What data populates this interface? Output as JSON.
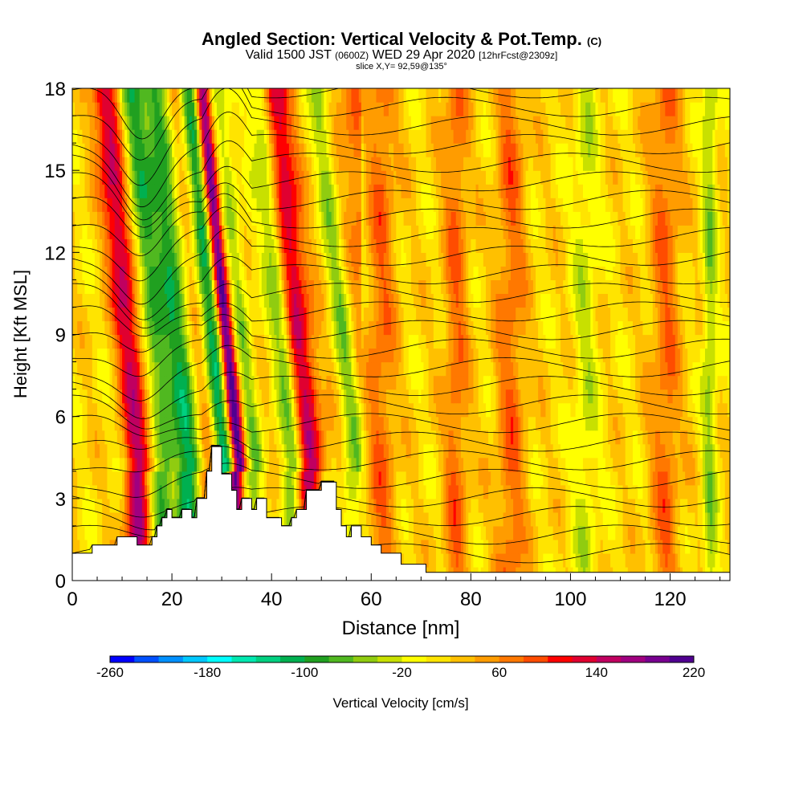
{
  "header": {
    "title": "Angled Section: Vertical Velocity & Pot.Temp.",
    "title_suffix": "(C)",
    "valid_prefix": "Valid 1500 JST",
    "valid_utc": "(0600Z)",
    "valid_date": "WED 29 Apr 2020",
    "forecast": "[12hrFcst@2309z]",
    "slice": "slice X,Y= 92,59@135°"
  },
  "chart_data": {
    "type": "heatmap",
    "xlabel": "Distance [nm]",
    "ylabel": "Height [Kft MSL]",
    "xlim": [
      0,
      132
    ],
    "ylim": [
      0,
      18
    ],
    "x_ticks": [
      0,
      20,
      40,
      60,
      80,
      100,
      120
    ],
    "y_ticks": [
      0,
      3,
      6,
      9,
      12,
      15,
      18
    ],
    "colorbar": {
      "label": "Vertical Velocity [cm/s]",
      "min": -260,
      "max": 220,
      "step": 20,
      "tick_labels": [
        "-260",
        "-180",
        "-100",
        "-20",
        "60",
        "140",
        "220"
      ],
      "colors": [
        "#0000ff",
        "#0050ff",
        "#0090ff",
        "#00c8ff",
        "#00ffff",
        "#00e8b0",
        "#00d080",
        "#00b050",
        "#20a020",
        "#50b820",
        "#90cc10",
        "#c8e000",
        "#ffff00",
        "#ffe400",
        "#ffc000",
        "#ff9c00",
        "#ff7800",
        "#ff4c00",
        "#ff0000",
        "#e00030",
        "#c00060",
        "#a00080",
        "#780090",
        "#500090"
      ]
    },
    "velocity_features": [
      {
        "x": 13,
        "w": 2.6,
        "value": 140
      },
      {
        "x": 18,
        "w": 2.5,
        "value": -100
      },
      {
        "x": 23,
        "w": 2.5,
        "value": -120
      },
      {
        "x": 27,
        "w": 1.8,
        "value": 60
      },
      {
        "x": 30,
        "w": 2.2,
        "value": -140
      },
      {
        "x": 32.5,
        "w": 1.5,
        "value": 220
      },
      {
        "x": 36,
        "w": 1.8,
        "value": -60
      },
      {
        "x": 44,
        "w": 2.2,
        "value": -100
      },
      {
        "x": 47,
        "w": 3,
        "value": 140
      },
      {
        "x": 56,
        "w": 1.8,
        "value": -60
      },
      {
        "x": 62,
        "w": 3,
        "value": 60
      },
      {
        "x": 77,
        "w": 2.5,
        "value": 60
      },
      {
        "x": 88,
        "w": 3,
        "value": 60
      },
      {
        "x": 103,
        "w": 2.5,
        "value": -40
      },
      {
        "x": 119,
        "w": 3,
        "value": 60
      },
      {
        "x": 128,
        "w": 1.5,
        "value": -60
      }
    ],
    "terrain": {
      "x": [
        0,
        4,
        4,
        9,
        9,
        13,
        13,
        16,
        16,
        17,
        17,
        18,
        18,
        19,
        19,
        20,
        20,
        22,
        22,
        24,
        24,
        25,
        25,
        27,
        27,
        28,
        28,
        30,
        30,
        32,
        32,
        33,
        33,
        34,
        34,
        36,
        36,
        37,
        37,
        39,
        39,
        42,
        42,
        44,
        44,
        45,
        45,
        47,
        47,
        50,
        50,
        53,
        53,
        54,
        54,
        55,
        55,
        56,
        56,
        58,
        58,
        60,
        60,
        62,
        62,
        66,
        66,
        71,
        71,
        132
      ],
      "height": [
        1.0,
        1.0,
        1.3,
        1.3,
        1.6,
        1.6,
        1.3,
        1.3,
        1.6,
        1.6,
        2.0,
        2.0,
        2.3,
        2.3,
        2.6,
        2.6,
        2.3,
        2.3,
        2.6,
        2.6,
        2.3,
        2.3,
        3.0,
        3.0,
        4.0,
        4.0,
        4.9,
        4.9,
        3.9,
        3.9,
        3.3,
        3.3,
        2.6,
        2.6,
        3.0,
        3.0,
        2.6,
        2.6,
        3.0,
        3.0,
        2.3,
        2.3,
        2.0,
        2.0,
        2.3,
        2.3,
        2.6,
        2.6,
        3.3,
        3.3,
        3.6,
        3.6,
        2.6,
        2.6,
        2.0,
        2.0,
        1.6,
        1.6,
        2.0,
        2.0,
        1.6,
        1.6,
        1.3,
        1.3,
        1.0,
        1.0,
        0.6,
        0.6,
        0.3,
        0.3
      ]
    }
  }
}
